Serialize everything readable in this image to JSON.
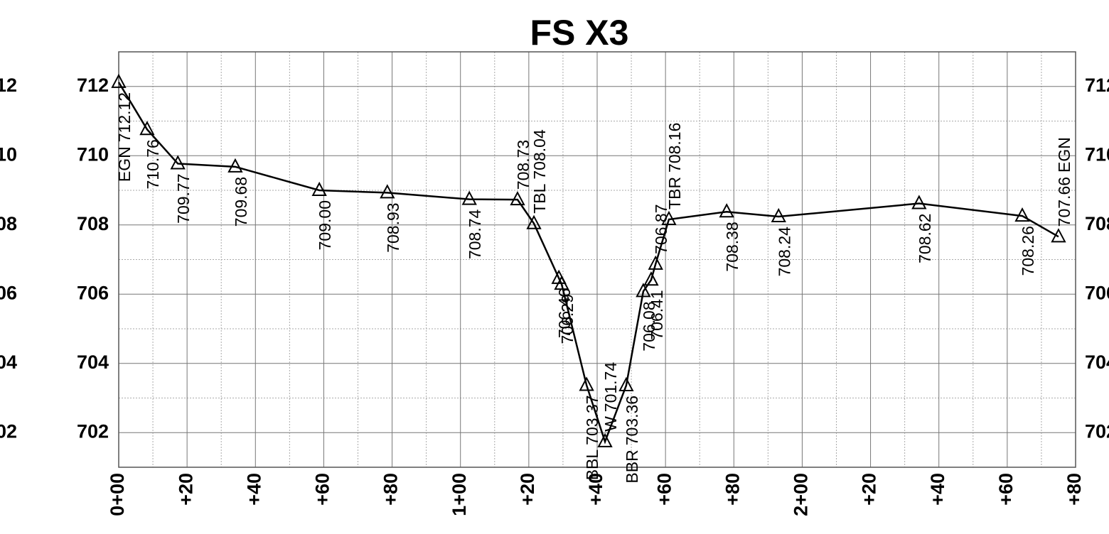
{
  "chart_data": {
    "type": "line",
    "title": "FS X3",
    "x": [
      0,
      8.3,
      17.3,
      34.1,
      58.7,
      78.6,
      102.6,
      116.7,
      121.5,
      128.8,
      129.6,
      136.9,
      142.3,
      148.5,
      153.5,
      155.8,
      157.1,
      161.0,
      177.9,
      193.1,
      234.2,
      264.4,
      275.0
    ],
    "series": [
      {
        "color": "#000000",
        "values": [
          712.12,
          710.76,
          709.77,
          709.68,
          709.0,
          708.93,
          708.74,
          708.73,
          708.04,
          706.46,
          706.29,
          703.37,
          701.74,
          703.36,
          706.08,
          706.41,
          706.87,
          708.16,
          708.38,
          708.24,
          708.62,
          708.26,
          707.66
        ],
        "value_labels": [
          "712.12",
          "710.76",
          "709.77",
          "709.68",
          "709.00",
          "708.93",
          "708.74",
          "708.73",
          "708.04",
          "706.46",
          "706.29",
          "703.37",
          "701.74",
          "703.36",
          "706.08",
          "706.41",
          "706.87",
          "708.16",
          "708.38",
          "708.24",
          "708.62",
          "708.26",
          "707.66"
        ],
        "point_codes": [
          "EGN",
          null,
          null,
          null,
          null,
          null,
          null,
          null,
          "TBL",
          null,
          null,
          "BBL",
          "W",
          "BBR",
          null,
          null,
          null,
          "TBR",
          null,
          null,
          null,
          null,
          "EGN"
        ]
      }
    ],
    "xlim": [
      0,
      280
    ],
    "xticks": [
      {
        "value": 0,
        "label": "0+00"
      },
      {
        "value": 20,
        "label": "+20"
      },
      {
        "value": 40,
        "label": "+40"
      },
      {
        "value": 60,
        "label": "+60"
      },
      {
        "value": 80,
        "label": "+80"
      },
      {
        "value": 100,
        "label": "1+00"
      },
      {
        "value": 120,
        "label": "+20"
      },
      {
        "value": 140,
        "label": "+40"
      },
      {
        "value": 160,
        "label": "+60"
      },
      {
        "value": 180,
        "label": "+80"
      },
      {
        "value": 200,
        "label": "2+00"
      },
      {
        "value": 220,
        "label": "+20"
      },
      {
        "value": 240,
        "label": "+40"
      },
      {
        "value": 260,
        "label": "+60"
      },
      {
        "value": 280,
        "label": "+80"
      }
    ],
    "xminor": [
      10,
      30,
      50,
      70,
      90,
      110,
      130,
      150,
      170,
      190,
      210,
      230,
      250,
      270
    ],
    "ylim": [
      701,
      713
    ],
    "yticks": [
      702,
      704,
      706,
      708,
      710,
      712
    ],
    "yminor": [
      701,
      703,
      705,
      707,
      709,
      711,
      713
    ],
    "grid": true
  }
}
